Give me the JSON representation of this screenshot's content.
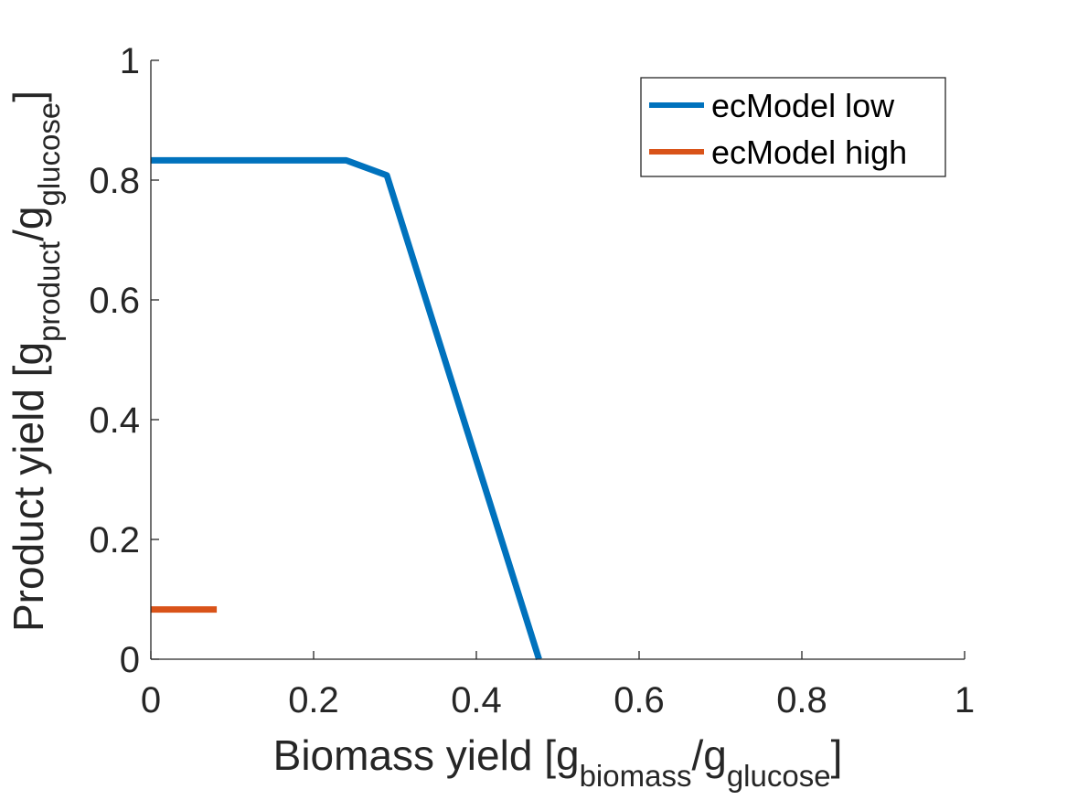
{
  "chart_data": {
    "type": "line",
    "xlabel": {
      "prefix": "Biomass yield [g",
      "sub1": "biomass",
      "mid": "/g",
      "sub2": "glucose",
      "suffix": "]"
    },
    "ylabel": {
      "prefix": "Product yield [g",
      "sub1": "product",
      "mid": "/g",
      "sub2": "glucose",
      "suffix": "]"
    },
    "xlim": [
      0,
      1
    ],
    "ylim": [
      0,
      1
    ],
    "xticks": [
      0,
      0.2,
      0.4,
      0.6,
      0.8,
      1
    ],
    "xtick_labels": [
      "0",
      "0.2",
      "0.4",
      "0.6",
      "0.8",
      "1"
    ],
    "yticks": [
      0,
      0.2,
      0.4,
      0.6,
      0.8,
      1
    ],
    "ytick_labels": [
      "0",
      "0.2",
      "0.4",
      "0.6",
      "0.8",
      "1"
    ],
    "grid": false,
    "legend_position": "top-right",
    "series": [
      {
        "name": "ecModel low",
        "color": "#0072BD",
        "x": [
          0,
          0.24,
          0.29,
          0.477
        ],
        "y": [
          0.833,
          0.833,
          0.808,
          0
        ]
      },
      {
        "name": "ecModel high",
        "color": "#D95319",
        "x": [
          0,
          0.081
        ],
        "y": [
          0.083,
          0.083
        ]
      }
    ]
  }
}
